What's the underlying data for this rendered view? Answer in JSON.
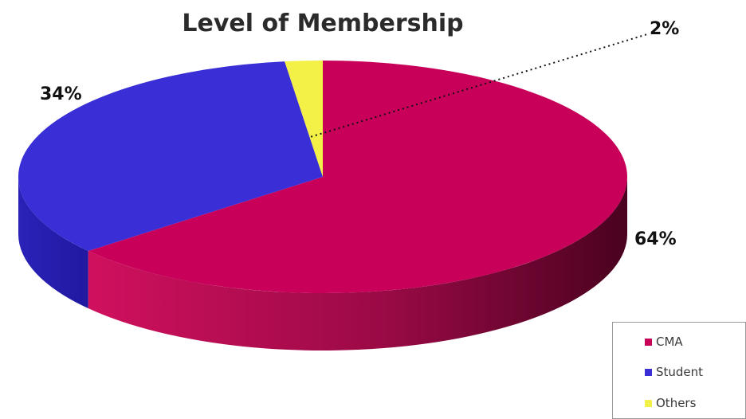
{
  "chart_data": {
    "type": "pie",
    "title": "Level of Membership",
    "slices": [
      {
        "name": "CMA",
        "value": 64,
        "label": "64%",
        "color": "#c8005a"
      },
      {
        "name": "Student",
        "value": 34,
        "label": "34%",
        "color": "#3a2fd6"
      },
      {
        "name": "Others",
        "value": 2,
        "label": "2%",
        "color": "#f3f048"
      }
    ],
    "three_d": true,
    "legend": "bottom-right"
  }
}
